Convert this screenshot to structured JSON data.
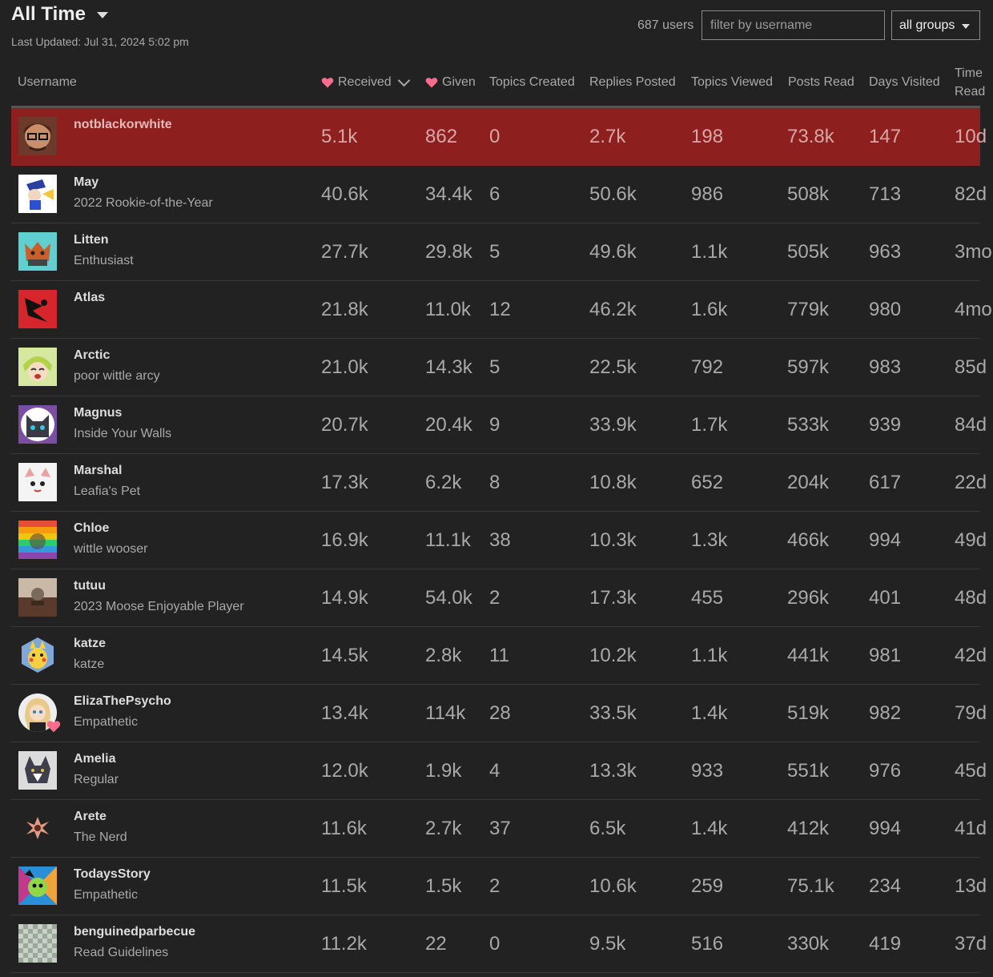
{
  "header": {
    "period_label": "All Time",
    "last_updated": "Last Updated: Jul 31, 2024 5:02 pm",
    "user_count": "687 users",
    "filter_placeholder": "filter by username",
    "group_label": "all groups"
  },
  "columns": {
    "username": "Username",
    "received": "Received",
    "given": "Given",
    "topics_created": "Topics Created",
    "replies_posted": "Replies Posted",
    "topics_viewed": "Topics Viewed",
    "posts_read": "Posts Read",
    "days_visited": "Days Visited",
    "time_read_1": "Time",
    "time_read_2": "Read"
  },
  "colors": {
    "highlight": "#8e1f1f",
    "heart": "#fa6c8d",
    "background": "#222222"
  },
  "rows": [
    {
      "name": "notblackorwhite",
      "title": "",
      "received": "5.1k",
      "given": "862",
      "topics": "0",
      "replies": "2.7k",
      "viewed": "198",
      "read": "73.8k",
      "days": "147",
      "time": "10d"
    },
    {
      "name": "May",
      "title": "2022 Rookie-of-the-Year",
      "received": "40.6k",
      "given": "34.4k",
      "topics": "6",
      "replies": "50.6k",
      "viewed": "986",
      "read": "508k",
      "days": "713",
      "time": "82d"
    },
    {
      "name": "Litten",
      "title": "Enthusiast",
      "received": "27.7k",
      "given": "29.8k",
      "topics": "5",
      "replies": "49.6k",
      "viewed": "1.1k",
      "read": "505k",
      "days": "963",
      "time": "3mo"
    },
    {
      "name": "Atlas",
      "title": "",
      "received": "21.8k",
      "given": "11.0k",
      "topics": "12",
      "replies": "46.2k",
      "viewed": "1.6k",
      "read": "779k",
      "days": "980",
      "time": "4mo"
    },
    {
      "name": "Arctic",
      "title": "poor wittle arcy",
      "received": "21.0k",
      "given": "14.3k",
      "topics": "5",
      "replies": "22.5k",
      "viewed": "792",
      "read": "597k",
      "days": "983",
      "time": "85d"
    },
    {
      "name": "Magnus",
      "title": "Inside Your Walls",
      "received": "20.7k",
      "given": "20.4k",
      "topics": "9",
      "replies": "33.9k",
      "viewed": "1.7k",
      "read": "533k",
      "days": "939",
      "time": "84d"
    },
    {
      "name": "Marshal",
      "title": "Leafia's Pet",
      "received": "17.3k",
      "given": "6.2k",
      "topics": "8",
      "replies": "10.8k",
      "viewed": "652",
      "read": "204k",
      "days": "617",
      "time": "22d"
    },
    {
      "name": "Chloe",
      "title": "wittle wooser",
      "received": "16.9k",
      "given": "11.1k",
      "topics": "38",
      "replies": "10.3k",
      "viewed": "1.3k",
      "read": "466k",
      "days": "994",
      "time": "49d"
    },
    {
      "name": "tutuu",
      "title": "2023 Moose Enjoyable Player",
      "received": "14.9k",
      "given": "54.0k",
      "topics": "2",
      "replies": "17.3k",
      "viewed": "455",
      "read": "296k",
      "days": "401",
      "time": "48d"
    },
    {
      "name": "katze",
      "title": "katze",
      "received": "14.5k",
      "given": "2.8k",
      "topics": "11",
      "replies": "10.2k",
      "viewed": "1.1k",
      "read": "441k",
      "days": "981",
      "time": "42d"
    },
    {
      "name": "ElizaThePsycho",
      "title": "Empathetic",
      "received": "13.4k",
      "given": "114k",
      "topics": "28",
      "replies": "33.5k",
      "viewed": "1.4k",
      "read": "519k",
      "days": "982",
      "time": "79d"
    },
    {
      "name": "Amelia",
      "title": "Regular",
      "received": "12.0k",
      "given": "1.9k",
      "topics": "4",
      "replies": "13.3k",
      "viewed": "933",
      "read": "551k",
      "days": "976",
      "time": "45d"
    },
    {
      "name": "Arete",
      "title": "The Nerd",
      "received": "11.6k",
      "given": "2.7k",
      "topics": "37",
      "replies": "6.5k",
      "viewed": "1.4k",
      "read": "412k",
      "days": "994",
      "time": "41d"
    },
    {
      "name": "TodaysStory",
      "title": "Empathetic",
      "received": "11.5k",
      "given": "1.5k",
      "topics": "2",
      "replies": "10.6k",
      "viewed": "259",
      "read": "75.1k",
      "days": "234",
      "time": "13d"
    },
    {
      "name": "benguinedparbecue",
      "title": "Read Guidelines",
      "received": "11.2k",
      "given": "22",
      "topics": "0",
      "replies": "9.5k",
      "viewed": "516",
      "read": "330k",
      "days": "419",
      "time": "37d"
    }
  ]
}
